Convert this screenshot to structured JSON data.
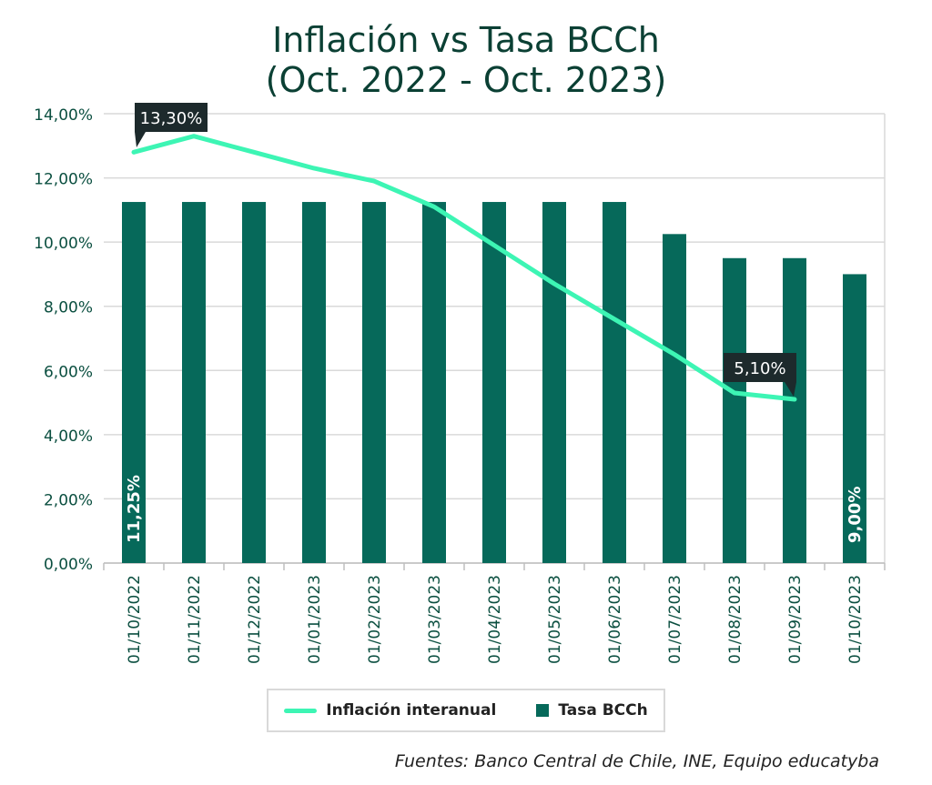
{
  "title_line1": "Inflación vs Tasa BCCh",
  "title_line2": "(Oct. 2022 - Oct. 2023)",
  "source": "Fuentes: Banco Central de Chile, INE, Equipo educatyba",
  "colors": {
    "bar": "#06695a",
    "line": "#3df5b4",
    "axis_text": "#0b4f40",
    "grid": "#d9d9d9",
    "callout_bg": "#1d2a2c"
  },
  "chart_data": {
    "type": "bar",
    "categories": [
      "01/10/2022",
      "01/11/2022",
      "01/12/2022",
      "01/01/2023",
      "01/02/2023",
      "01/03/2023",
      "01/04/2023",
      "01/05/2023",
      "01/06/2023",
      "01/07/2023",
      "01/08/2023",
      "01/09/2023",
      "01/10/2023"
    ],
    "series": [
      {
        "name": "Tasa BCCh",
        "type": "bar",
        "values": [
          11.25,
          11.25,
          11.25,
          11.25,
          11.25,
          11.25,
          11.25,
          11.25,
          11.25,
          10.25,
          9.5,
          9.5,
          9.0
        ]
      },
      {
        "name": "Inflación interanual",
        "type": "line",
        "values": [
          12.8,
          13.3,
          12.8,
          12.3,
          11.9,
          11.1,
          9.9,
          8.7,
          7.6,
          6.5,
          5.3,
          5.1,
          null
        ]
      }
    ],
    "ylim": [
      0,
      14
    ],
    "yticks": [
      0,
      2,
      4,
      6,
      8,
      10,
      12,
      14
    ],
    "ytick_labels": [
      "0,00%",
      "2,00%",
      "4,00%",
      "6,00%",
      "8,00%",
      "10,00%",
      "12,00%",
      "14,00%"
    ],
    "grid": true,
    "legend": "bottom",
    "bar_labels": [
      {
        "category_index": 0,
        "text": "11,25%"
      },
      {
        "category_index": 12,
        "text": "9,00%"
      }
    ],
    "callouts": [
      {
        "category_index": 1,
        "text": "13,30%"
      },
      {
        "category_index": 11,
        "text": "5,10%"
      }
    ]
  }
}
